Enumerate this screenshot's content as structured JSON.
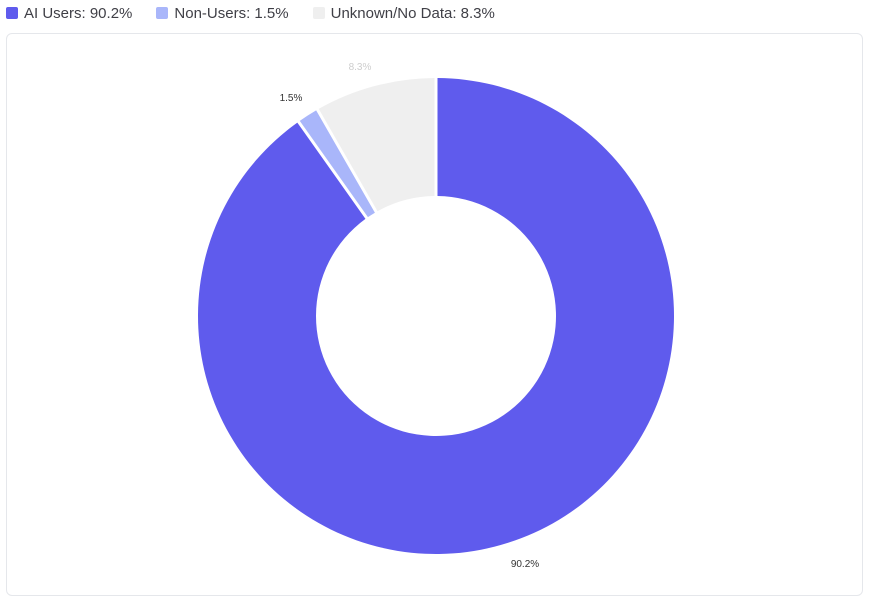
{
  "legend": [
    {
      "label": "AI Users: 90.2%",
      "color": "#5f5bed"
    },
    {
      "label": "Non-Users: 1.5%",
      "color": "#a9b6fa"
    },
    {
      "label": "Unknown/No Data: 8.3%",
      "color": "#efefef"
    }
  ],
  "chart_data": {
    "type": "pie",
    "donut": true,
    "slices": [
      {
        "name": "AI Users",
        "value": 90.2,
        "label": "90.2%",
        "color": "#5f5bed"
      },
      {
        "name": "Non-Users",
        "value": 1.5,
        "label": "1.5%",
        "color": "#a9b6fa"
      },
      {
        "name": "Unknown/No Data",
        "value": 8.3,
        "label": "8.3%",
        "color": "#efefef"
      }
    ],
    "legend_position": "top-left"
  }
}
